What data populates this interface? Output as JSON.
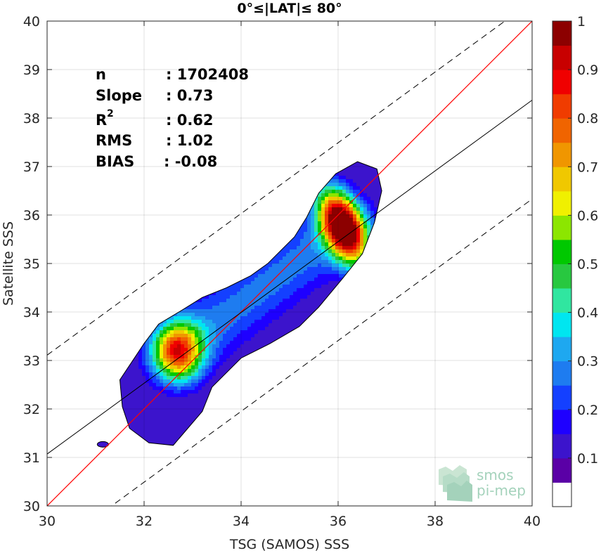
{
  "chart_data": {
    "type": "heatmap",
    "title": "0°≤|LAT|≤ 80°",
    "xlabel": "TSG (SAMOS) SSS",
    "ylabel": "Satellite SSS",
    "xlim": [
      30,
      40
    ],
    "ylim": [
      30,
      40
    ],
    "x_ticks": [
      "30",
      "32",
      "34",
      "36",
      "38",
      "40"
    ],
    "y_ticks": [
      "30",
      "31",
      "32",
      "33",
      "34",
      "35",
      "36",
      "37",
      "38",
      "39",
      "40"
    ],
    "grid": true,
    "stats": [
      {
        "label": "n",
        "value": ": 1702408"
      },
      {
        "label": "Slope",
        "value": ": 0.73"
      },
      {
        "label": "R",
        "sup": "2",
        "value": ": 0.62"
      },
      {
        "label": "RMS",
        "value": ": 1.02"
      },
      {
        "label": "BIAS",
        "value": ": -0.08"
      }
    ],
    "lines": {
      "identity": {
        "slope": 1,
        "intercept": 0,
        "color": "#ff0000"
      },
      "regression": {
        "slope": 0.73,
        "intercept": 9.17,
        "color": "#000000"
      },
      "rms_bounds": {
        "offset": 2.04,
        "style": "dashed",
        "color": "#000000"
      }
    },
    "density_modes": [
      {
        "x": 36.1,
        "y": 35.75,
        "peak": 1.0
      },
      {
        "x": 32.7,
        "y": 33.2,
        "peak": 0.65
      }
    ],
    "colorbar": {
      "min": 0,
      "max": 1,
      "tick_labels": [
        "0.1",
        "0.2",
        "0.3",
        "0.4",
        "0.5",
        "0.6",
        "0.7",
        "0.8",
        "0.9",
        "1"
      ],
      "colors": [
        "#ffffff",
        "#5a00a6",
        "#3c14cc",
        "#1e00ff",
        "#1440ff",
        "#1e7cf0",
        "#1ea8f0",
        "#00e6f0",
        "#30e6a0",
        "#28c840",
        "#00c800",
        "#8ce600",
        "#f0f000",
        "#f0c800",
        "#f09600",
        "#f06400",
        "#f03c00",
        "#f00000",
        "#c80000",
        "#8c0000"
      ]
    }
  },
  "watermark": {
    "line1": "smos",
    "line2": "pi-mep"
  }
}
